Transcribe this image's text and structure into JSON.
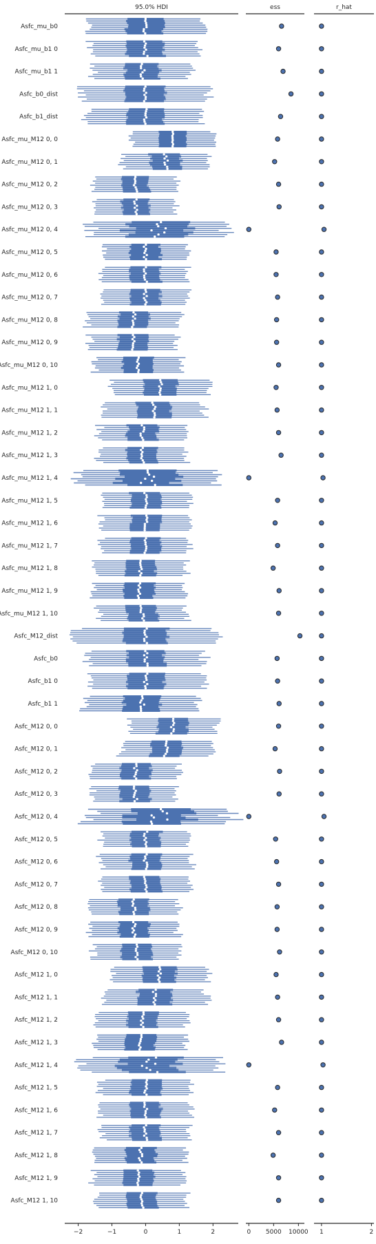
{
  "chart_data": {
    "type": "forest",
    "panels": [
      {
        "title": "95.0% HDI",
        "xlim": [
          -2.4,
          2.75
        ],
        "ticks": [
          -2,
          -1,
          0,
          1,
          2
        ],
        "tick_labels": [
          "−2",
          "−1",
          "0",
          "1",
          "2"
        ]
      },
      {
        "title": "ess",
        "xlim": [
          -600,
          11200
        ],
        "ticks": [
          0,
          5000,
          10000
        ],
        "tick_labels": [
          "0",
          "5000",
          "10000"
        ]
      },
      {
        "title": "r_hat",
        "xlim": [
          0.85,
          2.05
        ],
        "ticks": [
          1,
          2
        ],
        "tick_labels": [
          "1",
          "2"
        ]
      }
    ],
    "chains": 8,
    "colors": {
      "hdi": "#4c72b0",
      "marker_face": "#4c72b0",
      "marker_edge": "#262626",
      "median": "#ffffff"
    },
    "variables": [
      {
        "label": "Asfc_mu_b0",
        "center": 0.0,
        "iqr": 0.55,
        "hdi": 1.75,
        "spread": 0.08,
        "ess": 6600,
        "r_hat": 1.0
      },
      {
        "label": "Asfc_mu_b1 0",
        "center": 0.0,
        "iqr": 0.55,
        "hdi": 1.6,
        "spread": 0.06,
        "ess": 6000,
        "r_hat": 1.0
      },
      {
        "label": "Asfc_mu_b1 1",
        "center": -0.1,
        "iqr": 0.5,
        "hdi": 1.45,
        "spread": 0.08,
        "ess": 6900,
        "r_hat": 1.0
      },
      {
        "label": "Asfc_b0_dist",
        "center": 0.0,
        "iqr": 0.6,
        "hdi": 1.9,
        "spread": 0.05,
        "ess": 8500,
        "r_hat": 1.0
      },
      {
        "label": "Asfc_b1_dist",
        "center": 0.0,
        "iqr": 0.55,
        "hdi": 1.75,
        "spread": 0.05,
        "ess": 6400,
        "r_hat": 1.0
      },
      {
        "label": "Asfc_mu_M12 0, 0",
        "center": 0.8,
        "iqr": 0.4,
        "hdi": 1.2,
        "spread": 0.05,
        "ess": 5800,
        "r_hat": 1.0
      },
      {
        "label": "Asfc_mu_M12 0, 1",
        "center": 0.6,
        "iqr": 0.45,
        "hdi": 1.3,
        "spread": 0.06,
        "ess": 5200,
        "r_hat": 1.0
      },
      {
        "label": "Asfc_mu_M12 0, 2",
        "center": -0.3,
        "iqr": 0.4,
        "hdi": 1.25,
        "spread": 0.06,
        "ess": 6000,
        "r_hat": 1.0
      },
      {
        "label": "Asfc_mu_M12 0, 3",
        "center": -0.3,
        "iqr": 0.4,
        "hdi": 1.2,
        "spread": 0.05,
        "ess": 6100,
        "r_hat": 1.0
      },
      {
        "label": "Asfc_mu_M12 0, 4",
        "center": 0.4,
        "iqr": 0.9,
        "hdi": 2.05,
        "spread": 0.25,
        "ess": 0,
        "r_hat": 1.05
      },
      {
        "label": "Asfc_mu_M12 0, 5",
        "center": 0.0,
        "iqr": 0.45,
        "hdi": 1.25,
        "spread": 0.05,
        "ess": 5500,
        "r_hat": 1.0
      },
      {
        "label": "Asfc_mu_M12 0, 6",
        "center": 0.0,
        "iqr": 0.45,
        "hdi": 1.3,
        "spread": 0.05,
        "ess": 5500,
        "r_hat": 1.0
      },
      {
        "label": "Asfc_mu_M12 0, 7",
        "center": 0.0,
        "iqr": 0.45,
        "hdi": 1.3,
        "spread": 0.06,
        "ess": 5800,
        "r_hat": 1.0
      },
      {
        "label": "Asfc_mu_M12 0, 8",
        "center": -0.35,
        "iqr": 0.45,
        "hdi": 1.35,
        "spread": 0.05,
        "ess": 5600,
        "r_hat": 1.0
      },
      {
        "label": "Asfc_mu_M12 0, 9",
        "center": -0.35,
        "iqr": 0.45,
        "hdi": 1.3,
        "spread": 0.05,
        "ess": 5600,
        "r_hat": 1.0
      },
      {
        "label": "Asfc_mu_M12 0, 10",
        "center": -0.25,
        "iqr": 0.45,
        "hdi": 1.3,
        "spread": 0.05,
        "ess": 6000,
        "r_hat": 1.0
      },
      {
        "label": "Asfc_mu_M12 1, 0",
        "center": 0.45,
        "iqr": 0.5,
        "hdi": 1.45,
        "spread": 0.05,
        "ess": 5500,
        "r_hat": 1.0
      },
      {
        "label": "Asfc_mu_M12 1, 1",
        "center": 0.25,
        "iqr": 0.5,
        "hdi": 1.5,
        "spread": 0.06,
        "ess": 5700,
        "r_hat": 1.0
      },
      {
        "label": "Asfc_mu_M12 1, 2",
        "center": -0.1,
        "iqr": 0.45,
        "hdi": 1.3,
        "spread": 0.06,
        "ess": 6000,
        "r_hat": 1.0
      },
      {
        "label": "Asfc_mu_M12 1, 3",
        "center": -0.1,
        "iqr": 0.45,
        "hdi": 1.3,
        "spread": 0.05,
        "ess": 6500,
        "r_hat": 1.0
      },
      {
        "label": "Asfc_mu_M12 1, 4",
        "center": 0.1,
        "iqr": 0.85,
        "hdi": 2.05,
        "spread": 0.25,
        "ess": 0,
        "r_hat": 1.03
      },
      {
        "label": "Asfc_mu_M12 1, 5",
        "center": 0.0,
        "iqr": 0.45,
        "hdi": 1.3,
        "spread": 0.05,
        "ess": 5800,
        "r_hat": 1.0
      },
      {
        "label": "Asfc_mu_M12 1, 6",
        "center": 0.0,
        "iqr": 0.45,
        "hdi": 1.35,
        "spread": 0.05,
        "ess": 5300,
        "r_hat": 1.0
      },
      {
        "label": "Asfc_mu_M12 1, 7",
        "center": 0.0,
        "iqr": 0.45,
        "hdi": 1.3,
        "spread": 0.05,
        "ess": 5800,
        "r_hat": 1.0
      },
      {
        "label": "Asfc_mu_M12 1, 8",
        "center": -0.15,
        "iqr": 0.45,
        "hdi": 1.35,
        "spread": 0.05,
        "ess": 4900,
        "r_hat": 1.0
      },
      {
        "label": "Asfc_mu_M12 1, 9",
        "center": -0.2,
        "iqr": 0.45,
        "hdi": 1.35,
        "spread": 0.05,
        "ess": 6100,
        "r_hat": 1.0
      },
      {
        "label": "Asfc_mu_M12 1, 10",
        "center": -0.1,
        "iqr": 0.45,
        "hdi": 1.3,
        "spread": 0.05,
        "ess": 6000,
        "r_hat": 1.0
      },
      {
        "label": "Asfc_M12_dist",
        "center": 0.0,
        "iqr": 0.65,
        "hdi": 2.1,
        "spread": 0.05,
        "ess": 10300,
        "r_hat": 1.0
      },
      {
        "label": "Asfc_b0",
        "center": 0.0,
        "iqr": 0.55,
        "hdi": 1.75,
        "spread": 0.06,
        "ess": 5700,
        "r_hat": 1.0
      },
      {
        "label": "Asfc_b1 0",
        "center": 0.0,
        "iqr": 0.55,
        "hdi": 1.7,
        "spread": 0.06,
        "ess": 5800,
        "r_hat": 1.0
      },
      {
        "label": "Asfc_b1 1",
        "center": -0.1,
        "iqr": 0.55,
        "hdi": 1.7,
        "spread": 0.06,
        "ess": 6100,
        "r_hat": 1.0
      },
      {
        "label": "Asfc_M12 0, 0",
        "center": 0.8,
        "iqr": 0.45,
        "hdi": 1.3,
        "spread": 0.05,
        "ess": 6000,
        "r_hat": 1.0
      },
      {
        "label": "Asfc_M12 0, 1",
        "center": 0.6,
        "iqr": 0.45,
        "hdi": 1.35,
        "spread": 0.06,
        "ess": 5300,
        "r_hat": 1.0
      },
      {
        "label": "Asfc_M12 0, 2",
        "center": -0.3,
        "iqr": 0.45,
        "hdi": 1.3,
        "spread": 0.05,
        "ess": 6200,
        "r_hat": 1.0
      },
      {
        "label": "Asfc_M12 0, 3",
        "center": -0.3,
        "iqr": 0.45,
        "hdi": 1.25,
        "spread": 0.05,
        "ess": 6100,
        "r_hat": 1.0
      },
      {
        "label": "Asfc_M12 0, 4",
        "center": 0.4,
        "iqr": 0.9,
        "hdi": 2.1,
        "spread": 0.25,
        "ess": 0,
        "r_hat": 1.05
      },
      {
        "label": "Asfc_M12 0, 5",
        "center": 0.0,
        "iqr": 0.45,
        "hdi": 1.3,
        "spread": 0.05,
        "ess": 5400,
        "r_hat": 1.0
      },
      {
        "label": "Asfc_M12 0, 6",
        "center": 0.0,
        "iqr": 0.45,
        "hdi": 1.35,
        "spread": 0.05,
        "ess": 5600,
        "r_hat": 1.0
      },
      {
        "label": "Asfc_M12 0, 7",
        "center": 0.0,
        "iqr": 0.45,
        "hdi": 1.35,
        "spread": 0.05,
        "ess": 6000,
        "r_hat": 1.0
      },
      {
        "label": "Asfc_M12 0, 8",
        "center": -0.35,
        "iqr": 0.45,
        "hdi": 1.35,
        "spread": 0.05,
        "ess": 5700,
        "r_hat": 1.0
      },
      {
        "label": "Asfc_M12 0, 9",
        "center": -0.35,
        "iqr": 0.45,
        "hdi": 1.3,
        "spread": 0.05,
        "ess": 5700,
        "r_hat": 1.0
      },
      {
        "label": "Asfc_M12 0, 10",
        "center": -0.25,
        "iqr": 0.45,
        "hdi": 1.3,
        "spread": 0.05,
        "ess": 6200,
        "r_hat": 1.0
      },
      {
        "label": "Asfc_M12 1, 0",
        "center": 0.4,
        "iqr": 0.5,
        "hdi": 1.45,
        "spread": 0.05,
        "ess": 5500,
        "r_hat": 1.0
      },
      {
        "label": "Asfc_M12 1, 1",
        "center": 0.25,
        "iqr": 0.5,
        "hdi": 1.55,
        "spread": 0.06,
        "ess": 5800,
        "r_hat": 1.0
      },
      {
        "label": "Asfc_M12 1, 2",
        "center": -0.1,
        "iqr": 0.45,
        "hdi": 1.35,
        "spread": 0.05,
        "ess": 6000,
        "r_hat": 1.0
      },
      {
        "label": "Asfc_M12 1, 3",
        "center": -0.15,
        "iqr": 0.45,
        "hdi": 1.35,
        "spread": 0.05,
        "ess": 6600,
        "r_hat": 1.0
      },
      {
        "label": "Asfc_M12 1, 4",
        "center": 0.1,
        "iqr": 0.85,
        "hdi": 2.05,
        "spread": 0.25,
        "ess": 0,
        "r_hat": 1.03
      },
      {
        "label": "Asfc_M12 1, 5",
        "center": 0.0,
        "iqr": 0.45,
        "hdi": 1.35,
        "spread": 0.05,
        "ess": 5800,
        "r_hat": 1.0
      },
      {
        "label": "Asfc_M12 1, 6",
        "center": 0.0,
        "iqr": 0.45,
        "hdi": 1.35,
        "spread": 0.05,
        "ess": 5200,
        "r_hat": 1.0
      },
      {
        "label": "Asfc_M12 1, 7",
        "center": 0.0,
        "iqr": 0.45,
        "hdi": 1.3,
        "spread": 0.05,
        "ess": 6000,
        "r_hat": 1.0
      },
      {
        "label": "Asfc_M12 1, 8",
        "center": -0.15,
        "iqr": 0.45,
        "hdi": 1.35,
        "spread": 0.05,
        "ess": 4900,
        "r_hat": 1.0
      },
      {
        "label": "Asfc_M12 1, 9",
        "center": -0.2,
        "iqr": 0.45,
        "hdi": 1.35,
        "spread": 0.05,
        "ess": 6000,
        "r_hat": 1.0
      },
      {
        "label": "Asfc_M12 1, 10",
        "center": -0.1,
        "iqr": 0.45,
        "hdi": 1.35,
        "spread": 0.05,
        "ess": 6000,
        "r_hat": 1.0
      }
    ]
  }
}
